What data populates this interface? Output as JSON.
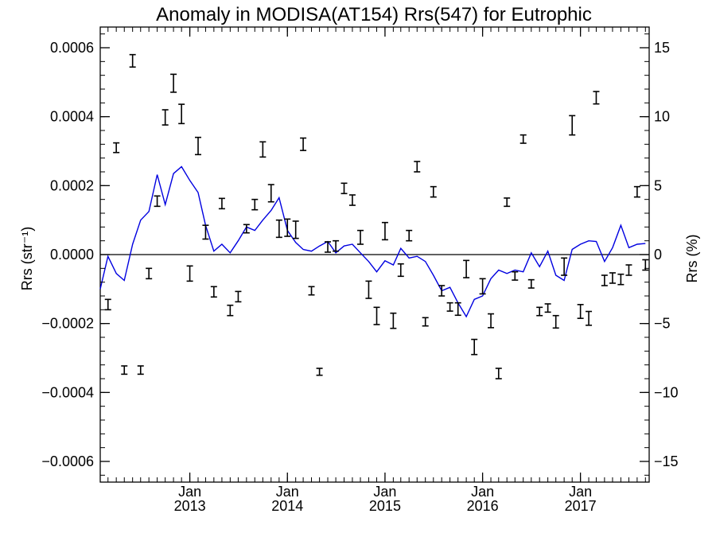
{
  "chart_data": {
    "type": "line",
    "title": "Anomaly in MODISA(AT154) Rrs(547) for Eutrophic",
    "ylabel_left": "Rrs (str⁻¹)",
    "ylabel_right": "Rrs (%)",
    "y_left_range": [
      -0.00066,
      0.00066
    ],
    "y_right_range": [
      -16.5,
      16.5
    ],
    "x_range": [
      "2012-02-01",
      "2017-09-15"
    ],
    "y_left_ticks": [
      {
        "value": 0.0006,
        "label": "0.0006"
      },
      {
        "value": 0.0004,
        "label": "0.0004"
      },
      {
        "value": 0.0002,
        "label": "0.0002"
      },
      {
        "value": 0.0,
        "label": "0.0000"
      },
      {
        "value": -0.0002,
        "label": "−0.0002"
      },
      {
        "value": -0.0004,
        "label": "−0.0004"
      },
      {
        "value": -0.0006,
        "label": "−0.0006"
      }
    ],
    "y_right_ticks": [
      {
        "value": 15,
        "label": "15"
      },
      {
        "value": 10,
        "label": "10"
      },
      {
        "value": 5,
        "label": "5"
      },
      {
        "value": 0,
        "label": "0"
      },
      {
        "value": -5,
        "label": "−5"
      },
      {
        "value": -10,
        "label": "−10"
      },
      {
        "value": -15,
        "label": "−15"
      }
    ],
    "x_ticks": [
      {
        "date": "2013-01-01",
        "month": "Jan",
        "year": "2013"
      },
      {
        "date": "2014-01-01",
        "month": "Jan",
        "year": "2014"
      },
      {
        "date": "2015-01-01",
        "month": "Jan",
        "year": "2015"
      },
      {
        "date": "2016-01-01",
        "month": "Jan",
        "year": "2016"
      },
      {
        "date": "2017-01-01",
        "month": "Jan",
        "year": "2017"
      }
    ],
    "reference_line": 0,
    "series": [
      {
        "color": "#0000e0",
        "x": [
          "2012-02-01",
          "2012-03-01",
          "2012-04-01",
          "2012-05-01",
          "2012-06-01",
          "2012-07-01",
          "2012-08-01",
          "2012-09-01",
          "2012-10-01",
          "2012-11-01",
          "2012-12-01",
          "2013-01-01",
          "2013-02-01",
          "2013-03-01",
          "2013-04-01",
          "2013-05-01",
          "2013-06-01",
          "2013-07-01",
          "2013-08-01",
          "2013-09-01",
          "2013-10-01",
          "2013-11-01",
          "2013-12-01",
          "2014-01-01",
          "2014-02-01",
          "2014-03-01",
          "2014-04-01",
          "2014-05-01",
          "2014-06-01",
          "2014-07-01",
          "2014-08-01",
          "2014-09-01",
          "2014-10-01",
          "2014-11-01",
          "2014-12-01",
          "2015-01-01",
          "2015-02-01",
          "2015-03-01",
          "2015-04-01",
          "2015-05-01",
          "2015-06-01",
          "2015-07-01",
          "2015-08-01",
          "2015-09-01",
          "2015-10-01",
          "2015-11-01",
          "2015-12-01",
          "2016-01-01",
          "2016-02-01",
          "2016-03-01",
          "2016-04-01",
          "2016-05-01",
          "2016-06-01",
          "2016-07-01",
          "2016-08-01",
          "2016-09-01",
          "2016-10-01",
          "2016-11-01",
          "2016-12-01",
          "2017-01-01",
          "2017-02-01",
          "2017-03-01",
          "2017-04-01",
          "2017-05-01",
          "2017-06-01",
          "2017-07-01",
          "2017-08-01",
          "2017-09-01"
        ],
        "y": [
          -0.0001,
          -5e-06,
          -5.5e-05,
          -7.5e-05,
          3e-05,
          0.0001,
          0.000125,
          0.000232,
          0.000145,
          0.000235,
          0.000255,
          0.000215,
          0.00018,
          8.5e-05,
          1e-05,
          3e-05,
          5e-06,
          4e-05,
          8e-05,
          7e-05,
          0.0001,
          0.000128,
          0.000165,
          7e-05,
          3.5e-05,
          1.5e-05,
          1e-05,
          2.5e-05,
          3.8e-05,
          5e-06,
          2.5e-05,
          3e-05,
          5e-06,
          -2e-05,
          -5e-05,
          -1.8e-05,
          -3e-05,
          1.8e-05,
          -1e-05,
          -5e-06,
          -2e-05,
          -6e-05,
          -0.000105,
          -9.5e-05,
          -0.00014,
          -0.00018,
          -0.00013,
          -0.00012,
          -7e-05,
          -4.5e-05,
          -5.5e-05,
          -4.5e-05,
          -5e-05,
          5e-06,
          -3.5e-05,
          1e-05,
          -6e-05,
          -7.5e-05,
          1.5e-05,
          3e-05,
          4e-05,
          3.8e-05,
          -2e-05,
          2e-05,
          8.5e-05,
          2e-05,
          3e-05,
          3.2e-05
        ]
      }
    ],
    "error_bars": {
      "color": "#000000",
      "points": [
        {
          "x": "2012-03-01",
          "y": -0.000145,
          "err": 1.5e-05
        },
        {
          "x": "2012-04-01",
          "y": 0.00031,
          "err": 1.4e-05
        },
        {
          "x": "2012-05-01",
          "y": -0.000335,
          "err": 1.2e-05
        },
        {
          "x": "2012-06-01",
          "y": 0.000562,
          "err": 1.8e-05
        },
        {
          "x": "2012-07-01",
          "y": -0.000335,
          "err": 1.2e-05
        },
        {
          "x": "2012-08-01",
          "y": -5.5e-05,
          "err": 1.5e-05
        },
        {
          "x": "2012-09-01",
          "y": 0.000155,
          "err": 1.5e-05
        },
        {
          "x": "2012-10-01",
          "y": 0.000398,
          "err": 2.2e-05
        },
        {
          "x": "2012-11-01",
          "y": 0.000497,
          "err": 2.6e-05
        },
        {
          "x": "2012-12-01",
          "y": 0.000408,
          "err": 2.8e-05
        },
        {
          "x": "2013-01-01",
          "y": -5.5e-05,
          "err": 2.2e-05
        },
        {
          "x": "2013-02-01",
          "y": 0.000315,
          "err": 2.5e-05
        },
        {
          "x": "2013-03-01",
          "y": 6.5e-05,
          "err": 2e-05
        },
        {
          "x": "2013-04-01",
          "y": -0.000108,
          "err": 1.5e-05
        },
        {
          "x": "2013-05-01",
          "y": 0.000148,
          "err": 1.5e-05
        },
        {
          "x": "2013-06-01",
          "y": -0.000162,
          "err": 1.5e-05
        },
        {
          "x": "2013-07-01",
          "y": -0.000122,
          "err": 1.5e-05
        },
        {
          "x": "2013-08-01",
          "y": 7.5e-05,
          "err": 1.2e-05
        },
        {
          "x": "2013-09-01",
          "y": 0.000145,
          "err": 1.5e-05
        },
        {
          "x": "2013-10-01",
          "y": 0.000305,
          "err": 2.2e-05
        },
        {
          "x": "2013-11-01",
          "y": 0.000178,
          "err": 2.5e-05
        },
        {
          "x": "2013-12-01",
          "y": 7.5e-05,
          "err": 2.5e-05
        },
        {
          "x": "2014-01-01",
          "y": 7.8e-05,
          "err": 2.5e-05
        },
        {
          "x": "2014-02-01",
          "y": 7.2e-05,
          "err": 2.5e-05
        },
        {
          "x": "2014-03-01",
          "y": 0.00032,
          "err": 1.8e-05
        },
        {
          "x": "2014-04-01",
          "y": -0.000105,
          "err": 1.2e-05
        },
        {
          "x": "2014-05-01",
          "y": -0.00034,
          "err": 1e-05
        },
        {
          "x": "2014-06-01",
          "y": 2.2e-05,
          "err": 1.5e-05
        },
        {
          "x": "2014-07-01",
          "y": 2.5e-05,
          "err": 1.5e-05
        },
        {
          "x": "2014-08-01",
          "y": 0.000192,
          "err": 1.5e-05
        },
        {
          "x": "2014-09-01",
          "y": 0.000158,
          "err": 1.5e-05
        },
        {
          "x": "2014-10-01",
          "y": 5e-05,
          "err": 2e-05
        },
        {
          "x": "2014-11-01",
          "y": -0.000102,
          "err": 2.5e-05
        },
        {
          "x": "2014-12-01",
          "y": -0.000178,
          "err": 2.5e-05
        },
        {
          "x": "2015-01-01",
          "y": 6.8e-05,
          "err": 2.5e-05
        },
        {
          "x": "2015-02-01",
          "y": -0.000192,
          "err": 2.2e-05
        },
        {
          "x": "2015-03-01",
          "y": -4.5e-05,
          "err": 1.8e-05
        },
        {
          "x": "2015-04-01",
          "y": 5.5e-05,
          "err": 1.5e-05
        },
        {
          "x": "2015-05-01",
          "y": 0.000255,
          "err": 1.5e-05
        },
        {
          "x": "2015-06-01",
          "y": -0.000195,
          "err": 1.2e-05
        },
        {
          "x": "2015-07-01",
          "y": 0.000182,
          "err": 1.5e-05
        },
        {
          "x": "2015-08-01",
          "y": -0.000105,
          "err": 1.5e-05
        },
        {
          "x": "2015-09-01",
          "y": -0.000152,
          "err": 1.2e-05
        },
        {
          "x": "2015-10-01",
          "y": -0.000158,
          "err": 1.8e-05
        },
        {
          "x": "2015-11-01",
          "y": -4.2e-05,
          "err": 2.5e-05
        },
        {
          "x": "2015-12-01",
          "y": -0.000268,
          "err": 2.2e-05
        },
        {
          "x": "2016-01-01",
          "y": -9.2e-05,
          "err": 2.2e-05
        },
        {
          "x": "2016-02-01",
          "y": -0.000192,
          "err": 2e-05
        },
        {
          "x": "2016-03-01",
          "y": -0.000345,
          "err": 1.5e-05
        },
        {
          "x": "2016-04-01",
          "y": 0.000152,
          "err": 1.2e-05
        },
        {
          "x": "2016-05-01",
          "y": -6.2e-05,
          "err": 1.2e-05
        },
        {
          "x": "2016-06-01",
          "y": 0.000335,
          "err": 1.2e-05
        },
        {
          "x": "2016-07-01",
          "y": -8.5e-05,
          "err": 1.2e-05
        },
        {
          "x": "2016-08-01",
          "y": -0.000165,
          "err": 1.2e-05
        },
        {
          "x": "2016-09-01",
          "y": -0.000155,
          "err": 1.2e-05
        },
        {
          "x": "2016-10-01",
          "y": -0.000195,
          "err": 1.8e-05
        },
        {
          "x": "2016-11-01",
          "y": -3.5e-05,
          "err": 2.5e-05
        },
        {
          "x": "2016-12-01",
          "y": 0.000375,
          "err": 2.8e-05
        },
        {
          "x": "2017-01-01",
          "y": -0.000165,
          "err": 2e-05
        },
        {
          "x": "2017-02-01",
          "y": -0.000185,
          "err": 2e-05
        },
        {
          "x": "2017-03-01",
          "y": 0.000455,
          "err": 1.8e-05
        },
        {
          "x": "2017-04-01",
          "y": -7.5e-05,
          "err": 1.5e-05
        },
        {
          "x": "2017-05-01",
          "y": -6.8e-05,
          "err": 1.5e-05
        },
        {
          "x": "2017-06-01",
          "y": -7.2e-05,
          "err": 1.5e-05
        },
        {
          "x": "2017-07-01",
          "y": -4.5e-05,
          "err": 1.5e-05
        },
        {
          "x": "2017-08-01",
          "y": 0.000182,
          "err": 1.5e-05
        },
        {
          "x": "2017-09-01",
          "y": -3e-05,
          "err": 1.5e-05
        }
      ]
    }
  }
}
